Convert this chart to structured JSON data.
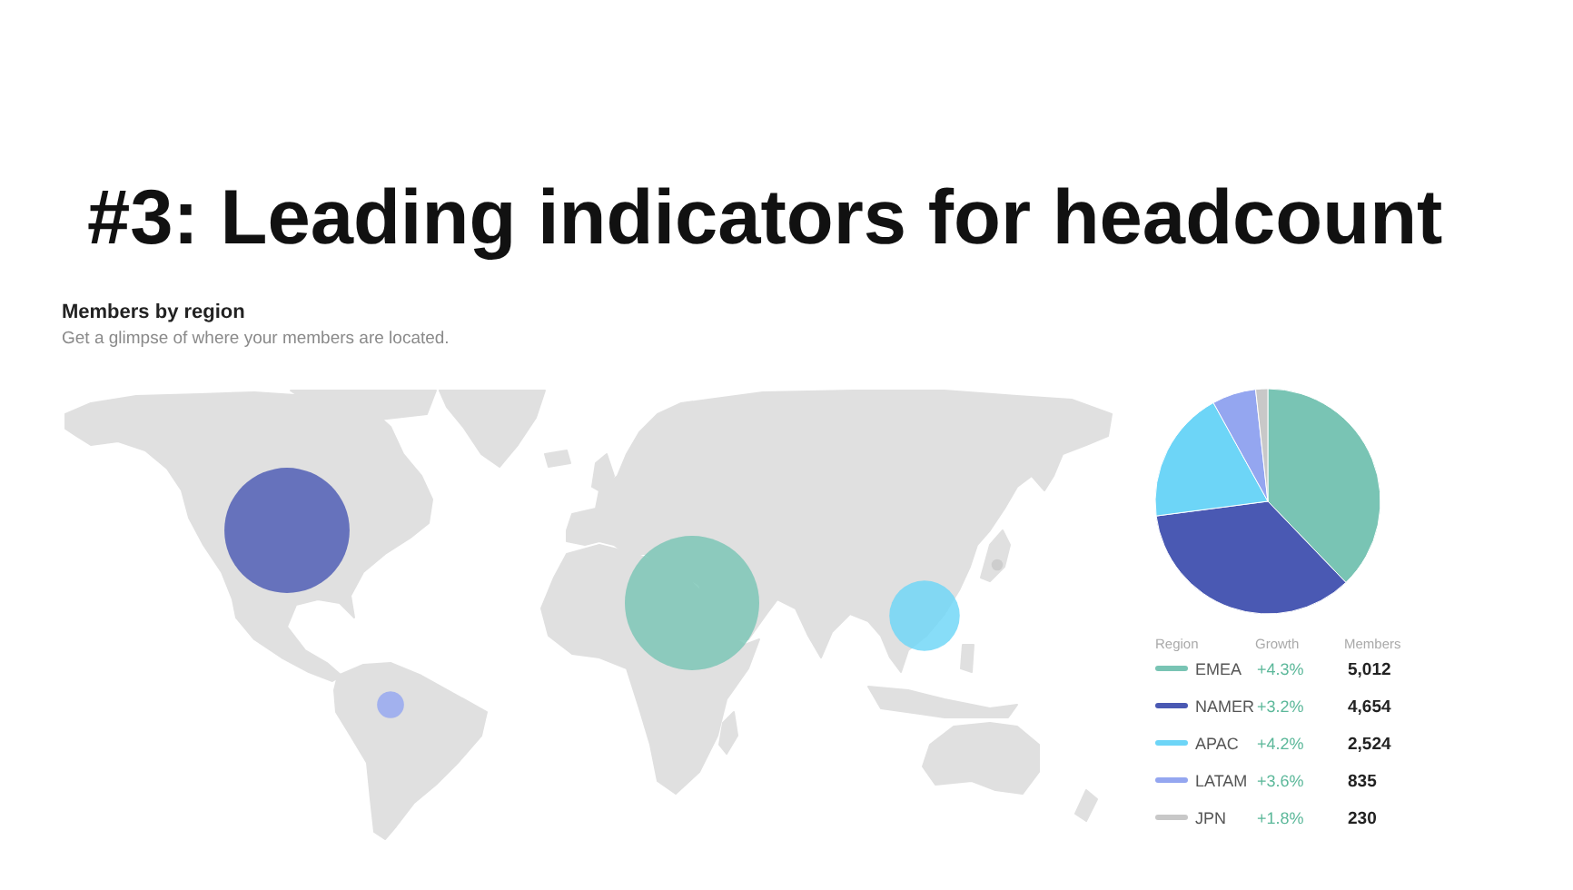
{
  "chart_data": {
    "type": "pie",
    "title": "#3: Leading indicators for headcount",
    "subtitle": "Members by region",
    "categories": [
      "EMEA",
      "NAMER",
      "APAC",
      "LATAM",
      "JPN"
    ],
    "values": [
      5012,
      4654,
      2524,
      835,
      230
    ],
    "colors": [
      "#79c4b4",
      "#4a59b3",
      "#6dd5f7",
      "#94a6f0",
      "#c8c8c8"
    ],
    "value_labels": [
      "5,012",
      "4,654",
      "2,524",
      "835",
      "230"
    ],
    "legend": "bottom",
    "legend_title": "Region",
    "annotations": [
      "Get a glimpse of where your members are located.",
      "Growth",
      "Members",
      "+4.3%",
      "+3.2%",
      "+4.2%",
      "+3.6%",
      "+1.8%"
    ]
  }
}
